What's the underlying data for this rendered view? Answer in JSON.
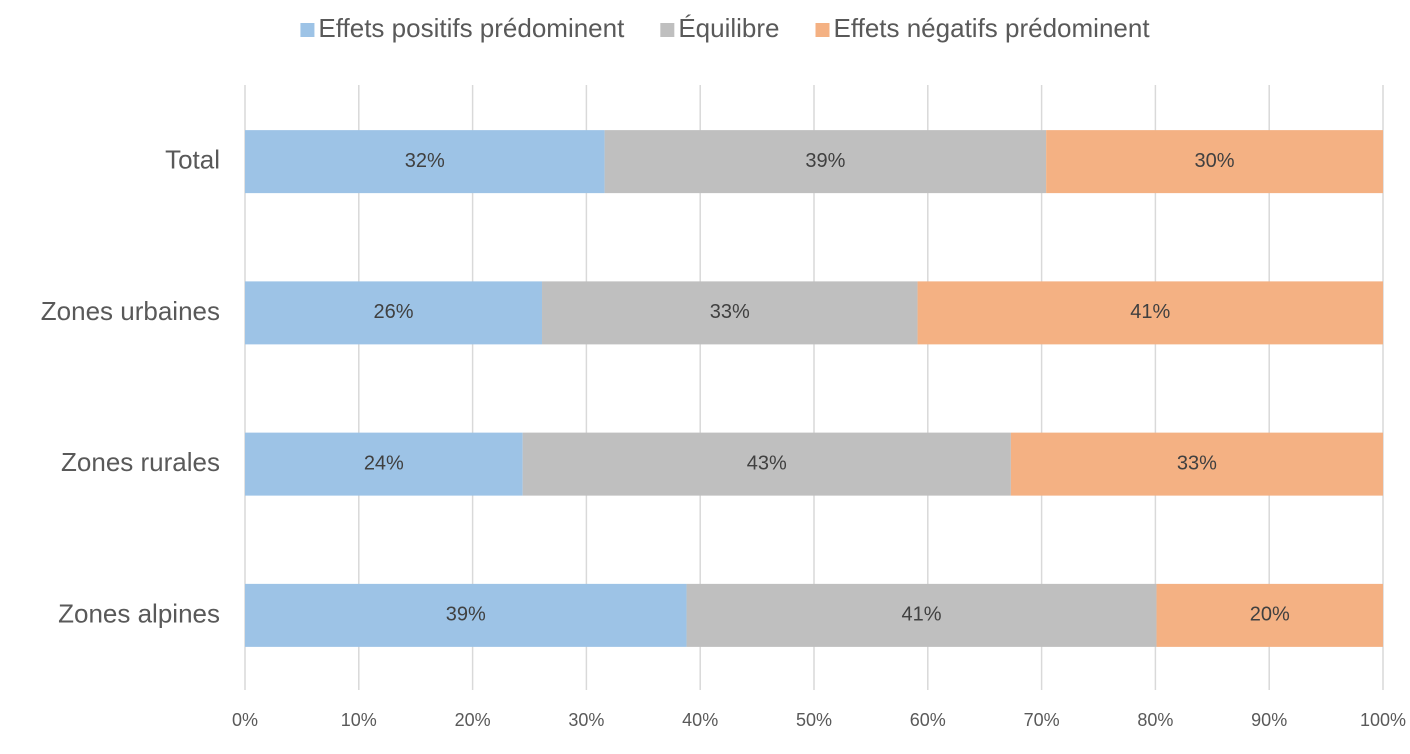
{
  "chart_data": {
    "type": "stacked_bar_horizontal",
    "categories": [
      "Total",
      "Zones urbaines",
      "Zones rurales",
      "Zones alpines"
    ],
    "series": [
      {
        "name": "Effets positifs prédominent",
        "color": "#9dc3e6",
        "values": [
          31.6,
          26.1,
          24.4,
          38.8
        ],
        "value_labels": [
          "32%",
          "26%",
          "24%",
          "39%"
        ]
      },
      {
        "name": "Équilibre",
        "color": "#bfbfbf",
        "values": [
          38.8,
          33.0,
          42.9,
          41.3
        ],
        "value_labels": [
          "39%",
          "33%",
          "43%",
          "41%"
        ]
      },
      {
        "name": "Effets négatifs prédominent",
        "color": "#f4b183",
        "values": [
          29.6,
          40.9,
          32.7,
          19.9
        ],
        "value_labels": [
          "30%",
          "41%",
          "33%",
          "20%"
        ]
      }
    ],
    "xlim": [
      0,
      100
    ],
    "xticks": [
      {
        "value": 0,
        "label": "0%"
      },
      {
        "value": 10,
        "label": "10%"
      },
      {
        "value": 20,
        "label": "20%"
      },
      {
        "value": 30,
        "label": "30%"
      },
      {
        "value": 40,
        "label": "40%"
      },
      {
        "value": 50,
        "label": "50%"
      },
      {
        "value": 60,
        "label": "60%"
      },
      {
        "value": 70,
        "label": "70%"
      },
      {
        "value": 80,
        "label": "80%"
      },
      {
        "value": 90,
        "label": "90%"
      },
      {
        "value": 100,
        "label": "100%"
      }
    ],
    "grid": true,
    "legend": "top"
  }
}
